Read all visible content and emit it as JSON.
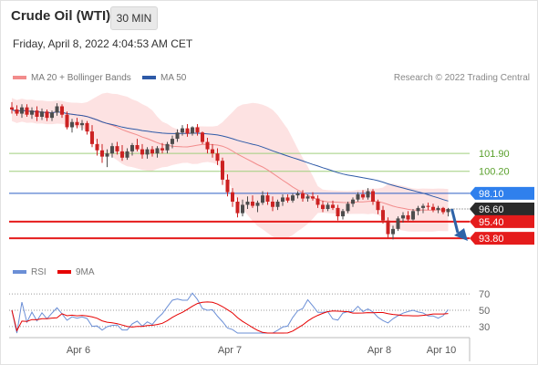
{
  "header": {
    "title": "Crude Oil (WTI)",
    "timeframe": "30 MIN"
  },
  "subtitle": "Friday, April 8, 2022 4:04:53 AM CET",
  "legend": {
    "ma_bollinger": {
      "label": "MA 20 + Bollinger Bands",
      "color": "#f28c8c"
    },
    "ma50": {
      "label": "MA 50",
      "color": "#2e5aa7"
    },
    "rsi": {
      "label": "RSI",
      "color": "#6b8fd6"
    },
    "ma9": {
      "label": "9MA",
      "color": "#e60000"
    }
  },
  "research_note": "Research © 2022 Trading Central",
  "colors": {
    "up_candle": "#4d4d4d",
    "down_candle": "#cc2222",
    "band_fill": "#fde2e2",
    "resistance": "#9fcf7d",
    "pivot": "#2d5fc4",
    "support": "#e51c1c",
    "arrow": "#2e63a8"
  },
  "chart_data": [
    {
      "type": "candlestick",
      "x_ticks": [
        "Apr 6",
        "Apr 7",
        "Apr 8",
        "Apr 10"
      ],
      "y_range": [
        91.9,
        108.1
      ],
      "price_levels": [
        {
          "id": "r2",
          "value": 101.9,
          "label": "101.90",
          "kind": "resistance"
        },
        {
          "id": "r1",
          "value": 100.2,
          "label": "100.20",
          "kind": "resistance"
        },
        {
          "id": "pivot",
          "value": 98.1,
          "label": "98.10",
          "kind": "pivot"
        },
        {
          "id": "last",
          "value": 96.6,
          "label": "96.60",
          "kind": "last_price"
        },
        {
          "id": "s1",
          "value": 95.4,
          "label": "95.40",
          "kind": "support"
        },
        {
          "id": "s2",
          "value": 93.8,
          "label": "93.80",
          "kind": "support"
        }
      ],
      "ohlc": [
        [
          106.3,
          106.8,
          105.7,
          106.1
        ],
        [
          106.1,
          106.5,
          105.5,
          105.7
        ],
        [
          105.7,
          106.6,
          105.3,
          106.3
        ],
        [
          106.3,
          106.6,
          105.4,
          105.6
        ],
        [
          105.6,
          106.3,
          105.2,
          106.0
        ],
        [
          106.0,
          106.4,
          105.0,
          105.4
        ],
        [
          105.4,
          106.2,
          105.1,
          105.9
        ],
        [
          105.9,
          106.1,
          105.0,
          105.3
        ],
        [
          105.3,
          106.0,
          105.0,
          105.8
        ],
        [
          105.8,
          106.7,
          105.5,
          106.4
        ],
        [
          106.4,
          106.6,
          105.3,
          105.6
        ],
        [
          105.6,
          105.9,
          104.2,
          104.4
        ],
        [
          104.4,
          105.2,
          103.9,
          104.9
        ],
        [
          104.9,
          105.3,
          104.3,
          104.6
        ],
        [
          104.6,
          105.1,
          104.1,
          104.8
        ],
        [
          104.8,
          105.0,
          103.7,
          104.0
        ],
        [
          104.0,
          104.6,
          102.5,
          102.8
        ],
        [
          102.8,
          103.3,
          101.7,
          102.2
        ],
        [
          102.2,
          102.8,
          101.0,
          101.6
        ],
        [
          101.6,
          102.3,
          100.6,
          101.9
        ],
        [
          101.9,
          102.9,
          101.5,
          102.6
        ],
        [
          102.6,
          103.0,
          101.8,
          102.1
        ],
        [
          102.1,
          102.7,
          101.2,
          101.5
        ],
        [
          101.5,
          102.4,
          101.3,
          102.1
        ],
        [
          102.1,
          102.9,
          101.7,
          102.7
        ],
        [
          102.7,
          103.3,
          102.1,
          102.3
        ],
        [
          102.3,
          102.8,
          101.4,
          101.8
        ],
        [
          101.8,
          102.5,
          101.4,
          102.3
        ],
        [
          102.3,
          102.6,
          101.6,
          101.9
        ],
        [
          101.9,
          102.6,
          101.5,
          102.4
        ],
        [
          102.4,
          102.9,
          101.9,
          102.2
        ],
        [
          102.2,
          103.0,
          101.9,
          102.8
        ],
        [
          102.8,
          103.6,
          102.4,
          103.3
        ],
        [
          103.3,
          104.2,
          103.0,
          103.9
        ],
        [
          103.9,
          104.6,
          103.6,
          104.3
        ],
        [
          104.3,
          104.7,
          103.5,
          103.8
        ],
        [
          103.8,
          104.5,
          103.6,
          104.4
        ],
        [
          104.4,
          104.7,
          103.6,
          103.9
        ],
        [
          103.9,
          104.0,
          102.8,
          103.0
        ],
        [
          103.0,
          103.4,
          101.9,
          102.3
        ],
        [
          102.3,
          102.8,
          101.5,
          101.9
        ],
        [
          101.9,
          102.4,
          100.8,
          101.2
        ],
        [
          101.2,
          101.5,
          98.9,
          99.4
        ],
        [
          99.4,
          99.9,
          97.8,
          98.2
        ],
        [
          98.2,
          98.6,
          96.8,
          97.3
        ],
        [
          97.3,
          97.7,
          95.8,
          96.2
        ],
        [
          96.2,
          97.5,
          95.9,
          97.0
        ],
        [
          97.0,
          97.8,
          96.6,
          97.3
        ],
        [
          97.3,
          97.9,
          96.7,
          96.9
        ],
        [
          96.9,
          97.4,
          96.3,
          97.2
        ],
        [
          97.2,
          98.3,
          97.0,
          97.9
        ],
        [
          97.9,
          98.2,
          97.0,
          97.3
        ],
        [
          97.3,
          97.8,
          96.4,
          96.8
        ],
        [
          96.8,
          97.5,
          96.5,
          97.3
        ],
        [
          97.3,
          98.0,
          96.9,
          97.7
        ],
        [
          97.7,
          98.0,
          97.2,
          97.4
        ],
        [
          97.4,
          98.1,
          97.2,
          97.9
        ],
        [
          97.9,
          98.3,
          97.6,
          98.1
        ],
        [
          98.1,
          98.4,
          97.3,
          97.6
        ],
        [
          97.6,
          98.0,
          97.3,
          97.8
        ],
        [
          97.8,
          98.2,
          97.4,
          97.6
        ],
        [
          97.6,
          97.9,
          96.7,
          97.0
        ],
        [
          97.0,
          97.4,
          96.3,
          96.6
        ],
        [
          96.6,
          97.2,
          96.4,
          97.0
        ],
        [
          97.0,
          97.4,
          96.5,
          96.7
        ],
        [
          96.7,
          97.0,
          95.5,
          95.9
        ],
        [
          95.9,
          96.6,
          95.6,
          96.4
        ],
        [
          96.4,
          97.3,
          96.2,
          97.1
        ],
        [
          97.1,
          97.7,
          96.8,
          97.5
        ],
        [
          97.5,
          98.2,
          97.3,
          98.0
        ],
        [
          98.0,
          98.4,
          97.5,
          97.7
        ],
        [
          97.7,
          98.6,
          97.5,
          98.3
        ],
        [
          98.3,
          98.5,
          97.0,
          97.3
        ],
        [
          97.3,
          97.5,
          96.1,
          96.5
        ],
        [
          96.5,
          96.9,
          95.2,
          95.5
        ],
        [
          95.5,
          95.8,
          93.8,
          94.2
        ],
        [
          94.2,
          95.0,
          93.7,
          94.7
        ],
        [
          94.7,
          95.9,
          94.5,
          95.7
        ],
        [
          95.7,
          96.3,
          95.3,
          96.0
        ],
        [
          96.0,
          96.4,
          95.4,
          95.6
        ],
        [
          95.6,
          96.6,
          95.5,
          96.4
        ],
        [
          96.4,
          96.9,
          96.0,
          96.7
        ],
        [
          96.7,
          97.1,
          96.2,
          96.9
        ],
        [
          96.9,
          97.2,
          96.5,
          96.8
        ],
        [
          96.8,
          97.1,
          96.3,
          96.5
        ],
        [
          96.5,
          96.9,
          96.2,
          96.7
        ],
        [
          96.7,
          96.8,
          96.1,
          96.3
        ],
        [
          96.3,
          96.7,
          95.9,
          96.6
        ]
      ]
    },
    {
      "type": "line",
      "y_ticks": [
        70,
        50,
        30
      ],
      "y_range": [
        22,
        78
      ]
    }
  ]
}
